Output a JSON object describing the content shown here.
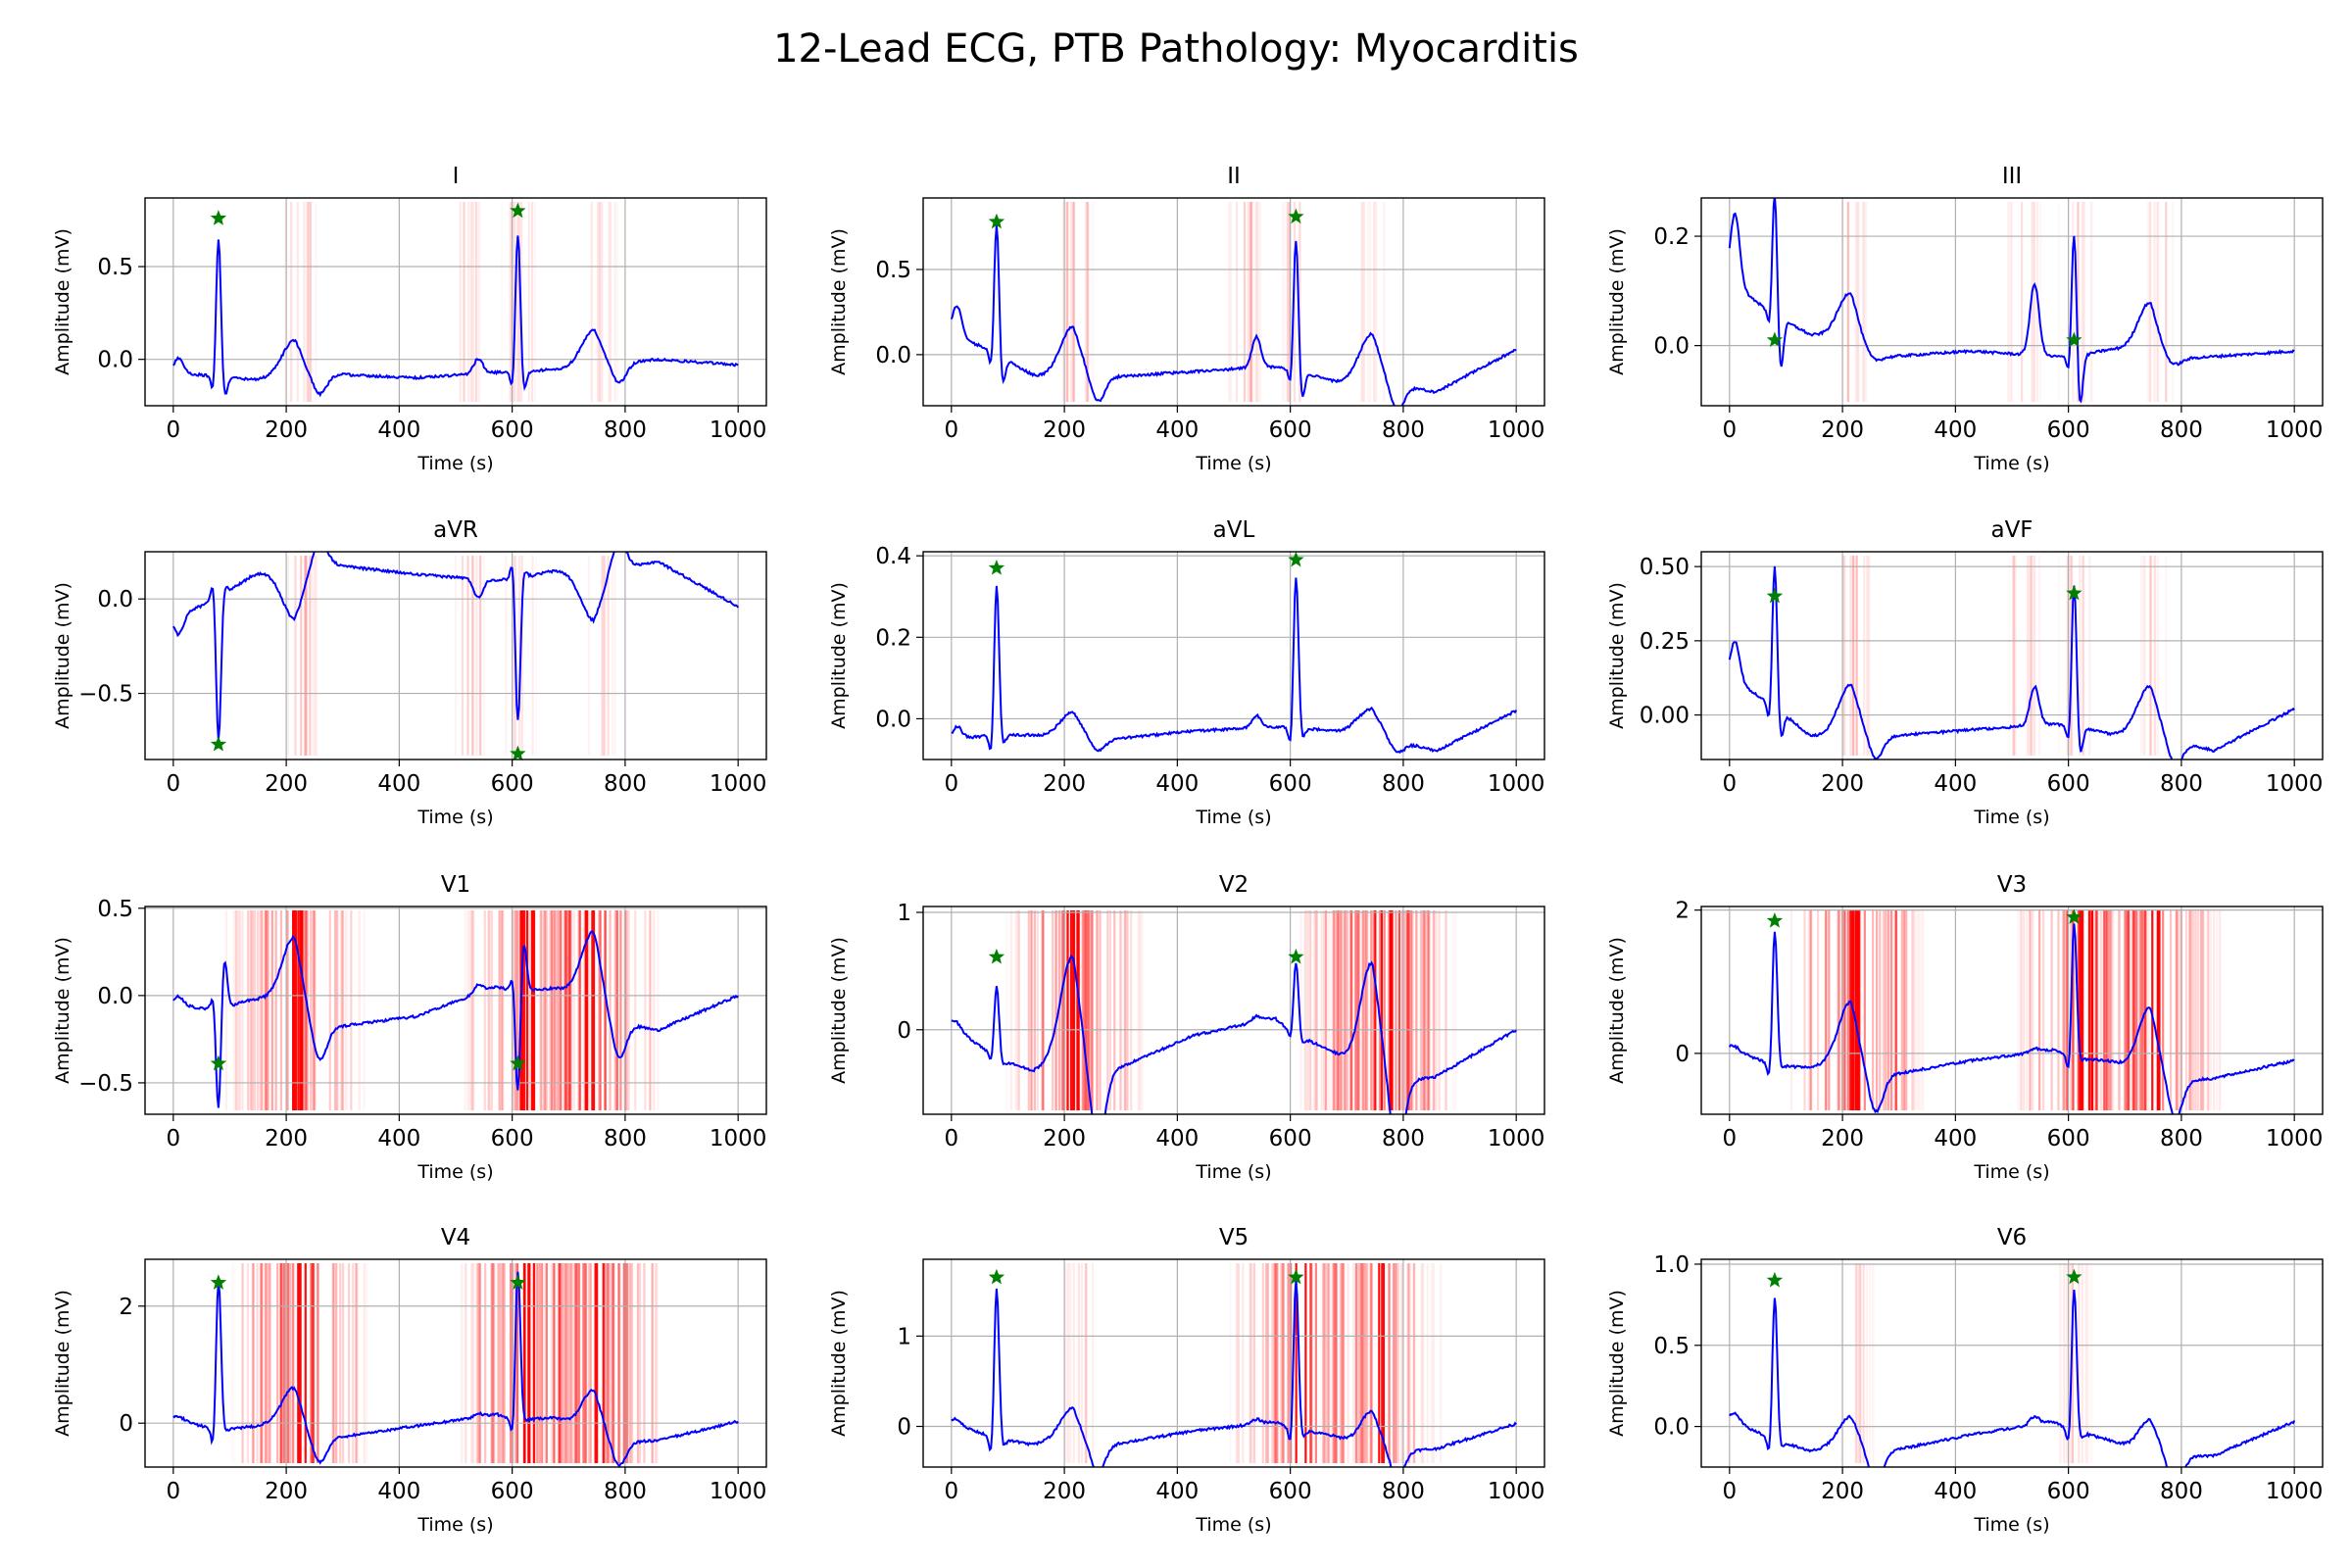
{
  "figure": {
    "title": "12-Lead ECG, PTB Pathology: Myocarditis"
  },
  "colors": {
    "signal": "#0000ff",
    "peak": "#008000",
    "attention": "#ff0000",
    "grid": "#b0b0b0"
  },
  "chart_data": {
    "type": "line",
    "x_range": [
      0,
      1000
    ],
    "x_ticks": [
      0,
      200,
      400,
      600,
      800,
      1000
    ],
    "xlabel": "Time (s)",
    "ylabel": "Amplitude (mV)",
    "grid": true,
    "leads": [
      {
        "name": "I",
        "ylim": [
          -0.25,
          0.87
        ],
        "y_ticks": [
          0.0,
          0.5
        ],
        "y_tick_labels": [
          "0.0",
          "0.5"
        ],
        "base": [
          -0.07,
          -0.11,
          -0.08,
          -0.1,
          -0.07,
          -0.05,
          0.0,
          -0.03
        ],
        "r_amp": 0.77,
        "q_dip": -0.12,
        "t_amp": 0.2,
        "t_pre": 0.0,
        "t_post": -0.1,
        "u_bump": 0.08,
        "peak_markers": [
          [
            80,
            0.76
          ],
          [
            610,
            0.8
          ]
        ],
        "attention": [
          [
            225,
            0.35
          ],
          [
            520,
            0.25
          ],
          [
            610,
            0.4
          ],
          [
            760,
            0.25
          ]
        ]
      },
      {
        "name": "II",
        "ylim": [
          -0.3,
          0.92
        ],
        "y_ticks": [
          0.0,
          0.5
        ],
        "y_tick_labels": [
          "0.0",
          "0.5"
        ],
        "base": [
          0.12,
          -0.07,
          -0.13,
          -0.1,
          -0.07,
          -0.12,
          -0.22,
          0.03
        ],
        "r_amp": 0.8,
        "q_dip": -0.18,
        "t_amp": 0.28,
        "t_pre": -0.05,
        "t_post": -0.15,
        "u_bump": 0.18,
        "peak_markers": [
          [
            80,
            0.78
          ],
          [
            610,
            0.81
          ]
        ],
        "attention": [
          [
            220,
            0.4
          ],
          [
            520,
            0.4
          ],
          [
            610,
            0.3
          ],
          [
            750,
            0.2
          ]
        ]
      },
      {
        "name": "III",
        "ylim": [
          -0.11,
          0.27
        ],
        "y_ticks": [
          0.0,
          0.2
        ],
        "y_tick_labels": [
          "0.0",
          "0.2"
        ],
        "base": [
          0.12,
          0.0,
          -0.02,
          -0.01,
          -0.02,
          -0.03,
          -0.02,
          -0.01
        ],
        "r_amp": 0.24,
        "q_dip": -0.1,
        "t_amp": 0.1,
        "t_pre": 0.02,
        "t_post": -0.01,
        "u_bump": 0.13,
        "peak_markers": [
          [
            80,
            0.01
          ],
          [
            610,
            0.01
          ]
        ],
        "attention": [
          [
            220,
            0.3
          ],
          [
            520,
            0.3
          ],
          [
            610,
            0.3
          ],
          [
            760,
            0.2
          ]
        ]
      },
      {
        "name": "aVR",
        "ylim": [
          -0.85,
          0.25
        ],
        "y_ticks": [
          -0.5,
          0.0
        ],
        "y_tick_labels": [
          "−0.5",
          "0.0"
        ],
        "base": [
          -0.1,
          0.08,
          0.18,
          0.13,
          0.1,
          0.1,
          0.2,
          -0.04
        ],
        "r_amp": -0.78,
        "q_dip": 0.05,
        "t_amp": -0.25,
        "t_pre": 0.05,
        "t_post": 0.15,
        "u_bump": -0.1,
        "peak_markers": [
          [
            80,
            -0.77
          ],
          [
            610,
            -0.82
          ]
        ],
        "attention": [
          [
            225,
            0.4
          ],
          [
            520,
            0.35
          ],
          [
            610,
            0.3
          ],
          [
            760,
            0.2
          ]
        ]
      },
      {
        "name": "aVL",
        "ylim": [
          -0.1,
          0.41
        ],
        "y_ticks": [
          0.0,
          0.2,
          0.4
        ],
        "y_tick_labels": [
          "0.0",
          "0.2",
          "0.4"
        ],
        "base": [
          -0.05,
          -0.03,
          -0.05,
          -0.03,
          -0.02,
          -0.02,
          -0.08,
          0.02
        ],
        "r_amp": 0.38,
        "q_dip": -0.03,
        "t_amp": 0.06,
        "t_pre": -0.01,
        "t_post": -0.03,
        "u_bump": 0.03,
        "peak_markers": [
          [
            80,
            0.37
          ],
          [
            610,
            0.39
          ]
        ],
        "attention": []
      },
      {
        "name": "aVF",
        "ylim": [
          -0.15,
          0.55
        ],
        "y_ticks": [
          0.0,
          0.25,
          0.5
        ],
        "y_tick_labels": [
          "0.00",
          "0.25",
          "0.50"
        ],
        "base": [
          0.13,
          -0.05,
          -0.07,
          -0.05,
          -0.03,
          -0.05,
          -0.12,
          0.02
        ],
        "r_amp": 0.5,
        "q_dip": -0.1,
        "t_amp": 0.17,
        "t_pre": -0.02,
        "t_post": -0.08,
        "u_bump": 0.13,
        "peak_markers": [
          [
            80,
            0.4
          ],
          [
            610,
            0.41
          ]
        ],
        "attention": [
          [
            220,
            0.35
          ],
          [
            520,
            0.35
          ],
          [
            610,
            0.3
          ],
          [
            750,
            0.2
          ]
        ]
      },
      {
        "name": "V1",
        "ylim": [
          -0.68,
          0.51
        ],
        "y_ticks": [
          -0.5,
          0.0,
          0.5
        ],
        "y_tick_labels": [
          "−0.5",
          "0.0",
          "0.5"
        ],
        "base": [
          -0.05,
          -0.12,
          -0.18,
          -0.12,
          0.05,
          -0.1,
          -0.2,
          0.0
        ],
        "r_amp": -0.62,
        "q_dip": 0.3,
        "t_amp": 0.45,
        "t_pre": 0.1,
        "t_post": -0.2,
        "u_bump": 0.05,
        "peak_markers": [
          [
            80,
            -0.39
          ],
          [
            610,
            -0.39
          ]
        ],
        "attention": [
          [
            215,
            1.0
          ],
          [
            625,
            0.6
          ],
          [
            740,
            1.0
          ]
        ]
      },
      {
        "name": "V2",
        "ylim": [
          -0.72,
          1.05
        ],
        "y_ticks": [
          0,
          1
        ],
        "y_tick_labels": [
          "0",
          "1"
        ],
        "base": [
          0.05,
          -0.5,
          -0.35,
          -0.05,
          0.1,
          -0.5,
          -0.4,
          0.0
        ],
        "r_amp": 0.62,
        "q_dip": -0.05,
        "t_amp": 1.0,
        "t_pre": 0.15,
        "t_post": -0.6,
        "u_bump": 0.05,
        "peak_markers": [
          [
            80,
            0.62
          ],
          [
            610,
            0.62
          ]
        ],
        "attention": [
          [
            215,
            1.0
          ],
          [
            740,
            1.0
          ],
          [
            770,
            0.8
          ]
        ]
      },
      {
        "name": "V3",
        "ylim": [
          -0.85,
          2.05
        ],
        "y_ticks": [
          0,
          2
        ],
        "y_tick_labels": [
          "0",
          "2"
        ],
        "base": [
          0.08,
          -0.4,
          -0.3,
          -0.1,
          0.05,
          -0.45,
          -0.35,
          -0.1
        ],
        "r_amp": 1.9,
        "q_dip": -0.05,
        "t_amp": 1.0,
        "t_pre": 0.2,
        "t_post": -0.5,
        "u_bump": 0.05,
        "peak_markers": [
          [
            80,
            1.85
          ],
          [
            610,
            1.9
          ]
        ],
        "attention": [
          [
            220,
            1.0
          ],
          [
            630,
            1.0
          ],
          [
            750,
            1.0
          ]
        ]
      },
      {
        "name": "V4",
        "ylim": [
          -0.75,
          2.8
        ],
        "y_ticks": [
          0,
          2
        ],
        "y_tick_labels": [
          "0",
          "2"
        ],
        "base": [
          0.1,
          -0.35,
          -0.25,
          -0.05,
          0.15,
          -0.35,
          -0.3,
          0.03
        ],
        "r_amp": 2.6,
        "q_dip": -0.05,
        "t_amp": 0.8,
        "t_pre": 0.3,
        "t_post": -0.4,
        "u_bump": 0.05,
        "peak_markers": [
          [
            80,
            2.4
          ],
          [
            610,
            2.4
          ]
        ],
        "attention": [
          [
            225,
            1.0
          ],
          [
            625,
            1.0
          ],
          [
            750,
            1.0
          ]
        ]
      },
      {
        "name": "V5",
        "ylim": [
          -0.45,
          1.85
        ],
        "y_ticks": [
          0,
          1
        ],
        "y_tick_labels": [
          "0",
          "1"
        ],
        "base": [
          0.05,
          -0.3,
          -0.2,
          -0.05,
          0.05,
          -0.3,
          -0.25,
          0.03
        ],
        "r_amp": 1.7,
        "q_dip": -0.1,
        "t_amp": 0.42,
        "t_pre": 0.1,
        "t_post": -0.3,
        "u_bump": 0.05,
        "peak_markers": [
          [
            80,
            1.65
          ],
          [
            610,
            1.65
          ]
        ],
        "attention": [
          [
            225,
            0.3
          ],
          [
            615,
            1.0
          ],
          [
            755,
            0.6
          ]
        ]
      },
      {
        "name": "V6",
        "ylim": [
          -0.25,
          1.03
        ],
        "y_ticks": [
          0.0,
          0.5,
          1.0
        ],
        "y_tick_labels": [
          "0.0",
          "0.5",
          "1.0"
        ],
        "base": [
          0.05,
          -0.2,
          -0.15,
          -0.05,
          0.03,
          -0.2,
          -0.18,
          0.03
        ],
        "r_amp": 0.9,
        "q_dip": -0.05,
        "t_amp": 0.22,
        "t_pre": 0.05,
        "t_post": -0.2,
        "u_bump": 0.05,
        "peak_markers": [
          [
            80,
            0.9
          ],
          [
            610,
            0.92
          ]
        ],
        "attention": [
          [
            225,
            0.3
          ],
          [
            610,
            0.3
          ]
        ]
      }
    ]
  }
}
